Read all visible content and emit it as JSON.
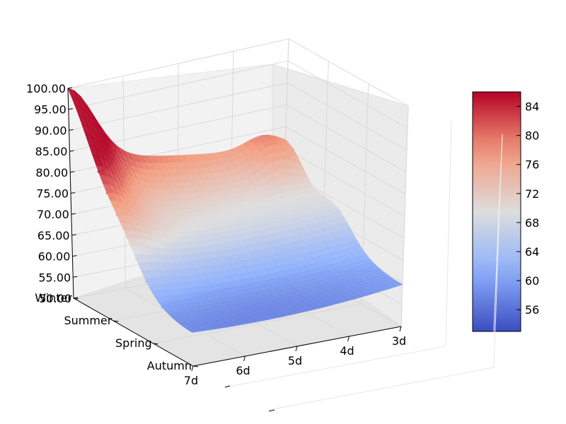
{
  "chart_data": {
    "type": "surface3d",
    "title": "",
    "xlabel": "",
    "ylabel": "",
    "zlabel": "",
    "x_ticks": [
      "3d",
      "4d",
      "5d",
      "6d",
      "7d"
    ],
    "y_ticks": [
      "Winter",
      "Summer",
      "Spring",
      "Autumn"
    ],
    "z_ticks": [
      "50.00",
      "55.00",
      "60.00",
      "65.00",
      "70.00",
      "75.00",
      "80.00",
      "85.00",
      "90.00",
      "95.00",
      "100.00"
    ],
    "zlim": [
      50,
      100
    ],
    "colormap": "coolwarm",
    "colorbar_range": [
      53,
      86
    ],
    "colorbar_ticks": [
      "56",
      "60",
      "64",
      "68",
      "72",
      "76",
      "80",
      "84"
    ],
    "grid": true,
    "contour_levels": [
      56,
      60,
      64,
      68,
      72,
      76,
      80,
      84
    ]
  }
}
